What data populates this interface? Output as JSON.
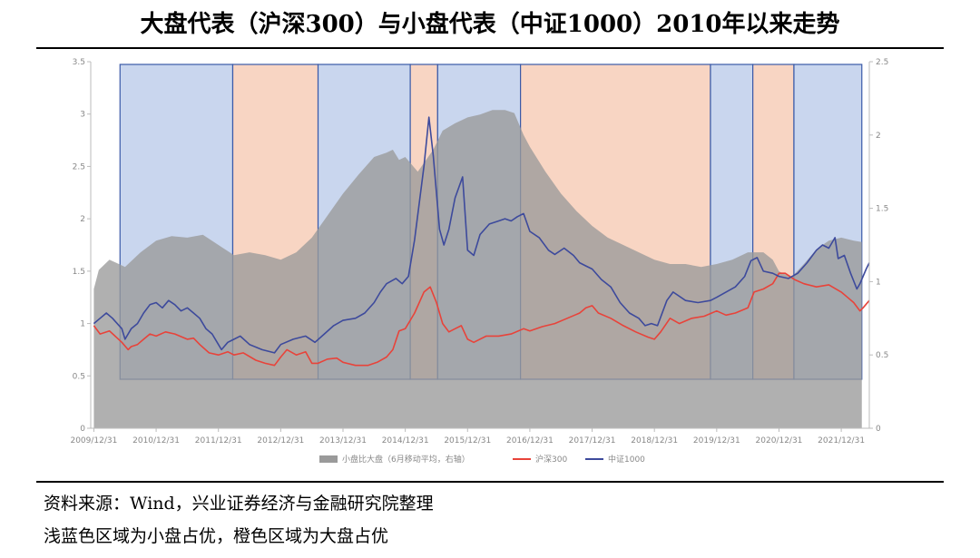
{
  "title": "大盘代表（沪深300）与小盘代表（中证1000）2010年以来走势",
  "source": "资料来源：Wind，兴业证券经济与金融研究院整理",
  "note": "浅蓝色区域为小盘占优，橙色区域为大盘占优",
  "chart_data": {
    "type": "line",
    "title": "大盘代表（沪深300）与小盘代表（中证1000）2010年以来走势",
    "x_tick_labels": [
      "2009/12/31",
      "2010/12/31",
      "2011/12/31",
      "2012/12/31",
      "2013/12/31",
      "2014/12/31",
      "2015/12/31",
      "2016/12/31",
      "2017/12/31",
      "2018/12/31",
      "2019/12/31",
      "2020/12/31",
      "2021/12/31"
    ],
    "x_range": [
      2009.95,
      2022.45
    ],
    "y_left": {
      "range": [
        0,
        3.5
      ],
      "ticks": [
        "0",
        "0.5",
        "1",
        "1.5",
        "2",
        "2.5",
        "3",
        "3.5"
      ]
    },
    "y_right": {
      "range": [
        0,
        2.5
      ],
      "ticks": [
        "0",
        "0.5",
        "1",
        "1.5",
        "2",
        "2.5"
      ]
    },
    "colors": {
      "hs300": "#e8433a",
      "zz1000": "#3d4a9c",
      "ratio_area": "#9a9a9a",
      "small_cap_region": "#c9d6ee",
      "large_cap_region": "#f8d5c3",
      "region_border": "#3a5aa8"
    },
    "regions": [
      {
        "type": "small_cap",
        "start": 2010.42,
        "end": 2012.23
      },
      {
        "type": "large_cap",
        "start": 2012.23,
        "end": 2013.6
      },
      {
        "type": "small_cap",
        "start": 2013.6,
        "end": 2015.08
      },
      {
        "type": "large_cap",
        "start": 2015.08,
        "end": 2015.52
      },
      {
        "type": "small_cap",
        "start": 2015.52,
        "end": 2016.85
      },
      {
        "type": "large_cap",
        "start": 2016.85,
        "end": 2019.9
      },
      {
        "type": "small_cap",
        "start": 2019.9,
        "end": 2020.58
      },
      {
        "type": "large_cap",
        "start": 2020.58,
        "end": 2021.24
      },
      {
        "type": "small_cap",
        "start": 2021.24,
        "end": 2022.33
      }
    ],
    "series": [
      {
        "name": "小盘比大盘（6月移动平均，右轴）",
        "axis": "right",
        "style": "area",
        "points": [
          [
            2010.0,
            0.95
          ],
          [
            2010.08,
            1.08
          ],
          [
            2010.25,
            1.15
          ],
          [
            2010.5,
            1.1
          ],
          [
            2010.75,
            1.2
          ],
          [
            2011.0,
            1.28
          ],
          [
            2011.25,
            1.31
          ],
          [
            2011.5,
            1.3
          ],
          [
            2011.75,
            1.32
          ],
          [
            2012.0,
            1.25
          ],
          [
            2012.25,
            1.18
          ],
          [
            2012.5,
            1.2
          ],
          [
            2012.75,
            1.18
          ],
          [
            2013.0,
            1.15
          ],
          [
            2013.25,
            1.2
          ],
          [
            2013.5,
            1.3
          ],
          [
            2013.75,
            1.45
          ],
          [
            2014.0,
            1.6
          ],
          [
            2014.25,
            1.73
          ],
          [
            2014.5,
            1.85
          ],
          [
            2014.7,
            1.88
          ],
          [
            2014.8,
            1.9
          ],
          [
            2014.9,
            1.83
          ],
          [
            2015.0,
            1.85
          ],
          [
            2015.2,
            1.75
          ],
          [
            2015.45,
            1.9
          ],
          [
            2015.6,
            2.03
          ],
          [
            2015.8,
            2.08
          ],
          [
            2016.0,
            2.12
          ],
          [
            2016.2,
            2.14
          ],
          [
            2016.4,
            2.17
          ],
          [
            2016.6,
            2.17
          ],
          [
            2016.75,
            2.15
          ],
          [
            2016.9,
            2.0
          ],
          [
            2017.0,
            1.92
          ],
          [
            2017.25,
            1.75
          ],
          [
            2017.5,
            1.6
          ],
          [
            2017.75,
            1.48
          ],
          [
            2018.0,
            1.38
          ],
          [
            2018.25,
            1.3
          ],
          [
            2018.5,
            1.25
          ],
          [
            2018.75,
            1.2
          ],
          [
            2019.0,
            1.15
          ],
          [
            2019.25,
            1.12
          ],
          [
            2019.5,
            1.12
          ],
          [
            2019.75,
            1.1
          ],
          [
            2020.0,
            1.12
          ],
          [
            2020.25,
            1.15
          ],
          [
            2020.5,
            1.2
          ],
          [
            2020.75,
            1.2
          ],
          [
            2020.9,
            1.15
          ],
          [
            2021.0,
            1.07
          ],
          [
            2021.2,
            1.03
          ],
          [
            2021.4,
            1.12
          ],
          [
            2021.6,
            1.22
          ],
          [
            2021.8,
            1.28
          ],
          [
            2022.0,
            1.3
          ],
          [
            2022.2,
            1.28
          ],
          [
            2022.33,
            1.27
          ]
        ]
      },
      {
        "name": "沪深300",
        "axis": "left",
        "style": "line",
        "points": [
          [
            2010.0,
            0.98
          ],
          [
            2010.1,
            0.9
          ],
          [
            2010.25,
            0.93
          ],
          [
            2010.45,
            0.82
          ],
          [
            2010.55,
            0.75
          ],
          [
            2010.6,
            0.78
          ],
          [
            2010.7,
            0.8
          ],
          [
            2010.8,
            0.85
          ],
          [
            2010.9,
            0.9
          ],
          [
            2011.0,
            0.88
          ],
          [
            2011.15,
            0.92
          ],
          [
            2011.3,
            0.9
          ],
          [
            2011.5,
            0.85
          ],
          [
            2011.6,
            0.86
          ],
          [
            2011.7,
            0.8
          ],
          [
            2011.85,
            0.72
          ],
          [
            2012.0,
            0.7
          ],
          [
            2012.15,
            0.73
          ],
          [
            2012.25,
            0.7
          ],
          [
            2012.4,
            0.72
          ],
          [
            2012.6,
            0.65
          ],
          [
            2012.75,
            0.62
          ],
          [
            2012.9,
            0.6
          ],
          [
            2013.0,
            0.68
          ],
          [
            2013.1,
            0.75
          ],
          [
            2013.25,
            0.7
          ],
          [
            2013.4,
            0.73
          ],
          [
            2013.5,
            0.62
          ],
          [
            2013.6,
            0.62
          ],
          [
            2013.75,
            0.66
          ],
          [
            2013.9,
            0.67
          ],
          [
            2014.0,
            0.63
          ],
          [
            2014.2,
            0.6
          ],
          [
            2014.4,
            0.6
          ],
          [
            2014.55,
            0.63
          ],
          [
            2014.7,
            0.68
          ],
          [
            2014.8,
            0.75
          ],
          [
            2014.9,
            0.93
          ],
          [
            2015.0,
            0.95
          ],
          [
            2015.15,
            1.1
          ],
          [
            2015.3,
            1.3
          ],
          [
            2015.4,
            1.35
          ],
          [
            2015.5,
            1.2
          ],
          [
            2015.6,
            1.0
          ],
          [
            2015.7,
            0.92
          ],
          [
            2015.8,
            0.95
          ],
          [
            2015.9,
            0.98
          ],
          [
            2016.0,
            0.85
          ],
          [
            2016.1,
            0.82
          ],
          [
            2016.3,
            0.88
          ],
          [
            2016.5,
            0.88
          ],
          [
            2016.7,
            0.9
          ],
          [
            2016.9,
            0.95
          ],
          [
            2017.0,
            0.93
          ],
          [
            2017.2,
            0.97
          ],
          [
            2017.4,
            1.0
          ],
          [
            2017.6,
            1.05
          ],
          [
            2017.8,
            1.1
          ],
          [
            2017.9,
            1.15
          ],
          [
            2018.0,
            1.17
          ],
          [
            2018.1,
            1.1
          ],
          [
            2018.3,
            1.05
          ],
          [
            2018.5,
            0.98
          ],
          [
            2018.7,
            0.92
          ],
          [
            2018.9,
            0.87
          ],
          [
            2019.0,
            0.85
          ],
          [
            2019.1,
            0.92
          ],
          [
            2019.25,
            1.05
          ],
          [
            2019.4,
            1.0
          ],
          [
            2019.6,
            1.05
          ],
          [
            2019.8,
            1.07
          ],
          [
            2020.0,
            1.12
          ],
          [
            2020.15,
            1.08
          ],
          [
            2020.3,
            1.1
          ],
          [
            2020.5,
            1.15
          ],
          [
            2020.6,
            1.3
          ],
          [
            2020.75,
            1.33
          ],
          [
            2020.9,
            1.38
          ],
          [
            2021.0,
            1.48
          ],
          [
            2021.1,
            1.48
          ],
          [
            2021.25,
            1.42
          ],
          [
            2021.4,
            1.38
          ],
          [
            2021.6,
            1.35
          ],
          [
            2021.8,
            1.37
          ],
          [
            2022.0,
            1.3
          ],
          [
            2022.1,
            1.25
          ],
          [
            2022.2,
            1.2
          ],
          [
            2022.3,
            1.12
          ],
          [
            2022.35,
            1.15
          ],
          [
            2022.45,
            1.22
          ]
        ]
      },
      {
        "name": "中证1000",
        "axis": "left",
        "style": "line",
        "points": [
          [
            2010.0,
            1.0
          ],
          [
            2010.1,
            1.05
          ],
          [
            2010.2,
            1.1
          ],
          [
            2010.3,
            1.05
          ],
          [
            2010.45,
            0.95
          ],
          [
            2010.5,
            0.85
          ],
          [
            2010.6,
            0.95
          ],
          [
            2010.7,
            1.0
          ],
          [
            2010.8,
            1.1
          ],
          [
            2010.9,
            1.18
          ],
          [
            2011.0,
            1.2
          ],
          [
            2011.1,
            1.15
          ],
          [
            2011.2,
            1.22
          ],
          [
            2011.3,
            1.18
          ],
          [
            2011.4,
            1.12
          ],
          [
            2011.5,
            1.15
          ],
          [
            2011.6,
            1.1
          ],
          [
            2011.7,
            1.05
          ],
          [
            2011.8,
            0.95
          ],
          [
            2011.9,
            0.9
          ],
          [
            2012.0,
            0.8
          ],
          [
            2012.05,
            0.75
          ],
          [
            2012.15,
            0.82
          ],
          [
            2012.25,
            0.85
          ],
          [
            2012.35,
            0.88
          ],
          [
            2012.5,
            0.8
          ],
          [
            2012.7,
            0.75
          ],
          [
            2012.9,
            0.72
          ],
          [
            2013.0,
            0.8
          ],
          [
            2013.2,
            0.85
          ],
          [
            2013.4,
            0.88
          ],
          [
            2013.55,
            0.82
          ],
          [
            2013.7,
            0.9
          ],
          [
            2013.85,
            0.98
          ],
          [
            2014.0,
            1.03
          ],
          [
            2014.2,
            1.05
          ],
          [
            2014.35,
            1.1
          ],
          [
            2014.5,
            1.2
          ],
          [
            2014.6,
            1.3
          ],
          [
            2014.7,
            1.38
          ],
          [
            2014.85,
            1.43
          ],
          [
            2014.95,
            1.38
          ],
          [
            2015.05,
            1.45
          ],
          [
            2015.15,
            1.8
          ],
          [
            2015.3,
            2.5
          ],
          [
            2015.38,
            2.97
          ],
          [
            2015.45,
            2.6
          ],
          [
            2015.55,
            1.9
          ],
          [
            2015.62,
            1.75
          ],
          [
            2015.7,
            1.9
          ],
          [
            2015.8,
            2.2
          ],
          [
            2015.92,
            2.4
          ],
          [
            2016.0,
            1.7
          ],
          [
            2016.1,
            1.65
          ],
          [
            2016.2,
            1.85
          ],
          [
            2016.35,
            1.95
          ],
          [
            2016.5,
            1.98
          ],
          [
            2016.6,
            2.0
          ],
          [
            2016.7,
            1.98
          ],
          [
            2016.8,
            2.02
          ],
          [
            2016.9,
            2.05
          ],
          [
            2017.0,
            1.88
          ],
          [
            2017.15,
            1.82
          ],
          [
            2017.3,
            1.7
          ],
          [
            2017.4,
            1.66
          ],
          [
            2017.55,
            1.72
          ],
          [
            2017.7,
            1.65
          ],
          [
            2017.8,
            1.58
          ],
          [
            2017.9,
            1.55
          ],
          [
            2018.0,
            1.52
          ],
          [
            2018.15,
            1.42
          ],
          [
            2018.3,
            1.35
          ],
          [
            2018.45,
            1.2
          ],
          [
            2018.6,
            1.1
          ],
          [
            2018.75,
            1.05
          ],
          [
            2018.85,
            0.98
          ],
          [
            2018.95,
            1.0
          ],
          [
            2019.05,
            0.98
          ],
          [
            2019.2,
            1.22
          ],
          [
            2019.3,
            1.3
          ],
          [
            2019.5,
            1.22
          ],
          [
            2019.7,
            1.2
          ],
          [
            2019.9,
            1.22
          ],
          [
            2020.0,
            1.25
          ],
          [
            2020.15,
            1.3
          ],
          [
            2020.3,
            1.35
          ],
          [
            2020.45,
            1.45
          ],
          [
            2020.55,
            1.6
          ],
          [
            2020.65,
            1.63
          ],
          [
            2020.75,
            1.5
          ],
          [
            2020.9,
            1.48
          ],
          [
            2021.0,
            1.45
          ],
          [
            2021.15,
            1.43
          ],
          [
            2021.3,
            1.48
          ],
          [
            2021.45,
            1.58
          ],
          [
            2021.6,
            1.7
          ],
          [
            2021.7,
            1.75
          ],
          [
            2021.8,
            1.72
          ],
          [
            2021.9,
            1.82
          ],
          [
            2021.95,
            1.62
          ],
          [
            2022.05,
            1.65
          ],
          [
            2022.15,
            1.48
          ],
          [
            2022.25,
            1.33
          ],
          [
            2022.3,
            1.38
          ],
          [
            2022.4,
            1.52
          ],
          [
            2022.45,
            1.58
          ]
        ]
      }
    ],
    "legend": [
      "小盘比大盘（6月移动平均，右轴）",
      "沪深300",
      "中证1000"
    ],
    "legend_position": "bottom"
  }
}
